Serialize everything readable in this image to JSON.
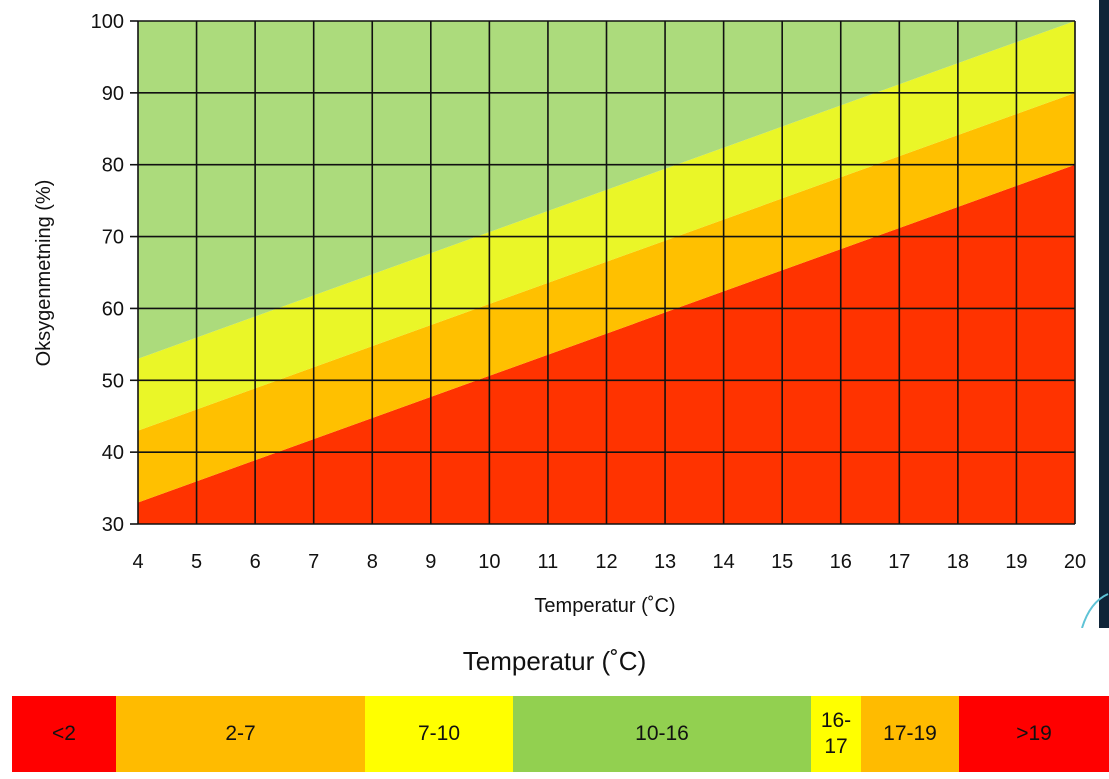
{
  "chart_data": {
    "type": "area",
    "title": "",
    "xlabel": "Temperatur (˚C)",
    "ylabel": "Oksygenmetning (%)",
    "xlim": [
      4,
      20
    ],
    "ylim": [
      30,
      100
    ],
    "x_ticks": [
      4,
      5,
      6,
      7,
      8,
      9,
      10,
      11,
      12,
      13,
      14,
      15,
      16,
      17,
      18,
      19,
      20
    ],
    "y_ticks": [
      30,
      40,
      50,
      60,
      70,
      80,
      90,
      100
    ],
    "grid": true,
    "boundaries": [
      {
        "points": [
          [
            4,
            33
          ],
          [
            20,
            80
          ]
        ]
      },
      {
        "points": [
          [
            4,
            43
          ],
          [
            20,
            90
          ]
        ]
      },
      {
        "points": [
          [
            4,
            53
          ],
          [
            20,
            100
          ]
        ]
      }
    ],
    "zones": [
      {
        "color": "#ff3300"
      },
      {
        "color": "#ffc000"
      },
      {
        "color": "#eaf628"
      },
      {
        "color": "#acdb7c"
      }
    ]
  },
  "legend": {
    "title": "Temperatur (˚C)",
    "segments": [
      {
        "label": "<2",
        "color": "#ff0000",
        "weight": 104
      },
      {
        "label": "2-7",
        "color": "#ffbb00",
        "weight": 249
      },
      {
        "label": "7-10",
        "color": "#ffff00",
        "weight": 148
      },
      {
        "label": "10-16",
        "color": "#92d050",
        "weight": 298
      },
      {
        "label": "16-\n17",
        "color": "#ffff00",
        "weight": 50
      },
      {
        "label": "17-19",
        "color": "#ffbb00",
        "weight": 98
      },
      {
        "label": ">19",
        "color": "#ff0000",
        "weight": 150
      }
    ]
  }
}
